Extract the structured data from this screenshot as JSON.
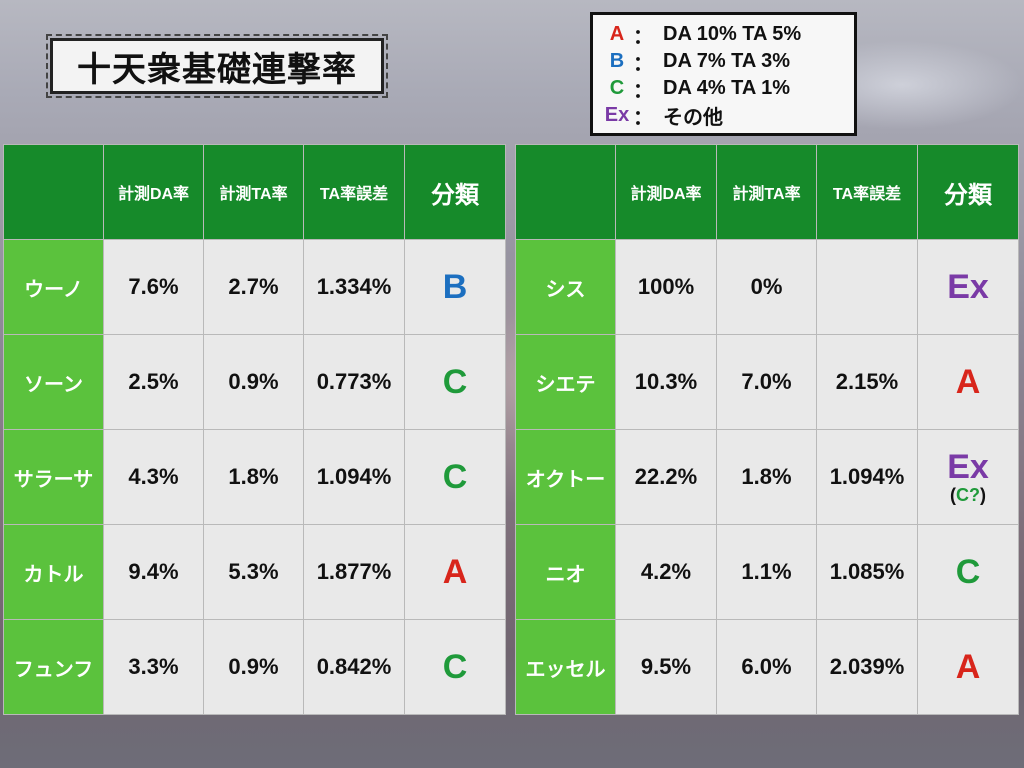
{
  "title": "十天衆基礎連撃率",
  "legend": [
    {
      "key": "A",
      "desc": "DA 10% TA 5%",
      "color": "#d8251b"
    },
    {
      "key": "B",
      "desc": "DA 7% TA 3%",
      "color": "#1c6fc0"
    },
    {
      "key": "C",
      "desc": "DA 4% TA 1%",
      "color": "#1f9a3a"
    },
    {
      "key": "Ex",
      "desc": "その他",
      "color": "#7a3aa6"
    }
  ],
  "legend_colon": "：",
  "headers": [
    "",
    "計測DA率",
    "計測TA率",
    "TA率誤差",
    "分類"
  ],
  "left_rows": [
    {
      "name": "ウーノ",
      "da": "7.6%",
      "ta": "2.7%",
      "err": "1.334%",
      "cls": "B"
    },
    {
      "name": "ソーン",
      "da": "2.5%",
      "ta": "0.9%",
      "err": "0.773%",
      "cls": "C"
    },
    {
      "name": "サラーサ",
      "da": "4.3%",
      "ta": "1.8%",
      "err": "1.094%",
      "cls": "C"
    },
    {
      "name": "カトル",
      "da": "9.4%",
      "ta": "5.3%",
      "err": "1.877%",
      "cls": "A"
    },
    {
      "name": "フュンフ",
      "da": "3.3%",
      "ta": "0.9%",
      "err": "0.842%",
      "cls": "C"
    }
  ],
  "right_rows": [
    {
      "name": "シス",
      "da": "100%",
      "ta": "0%",
      "err": "",
      "cls": "Ex"
    },
    {
      "name": "シエテ",
      "da": "10.3%",
      "ta": "7.0%",
      "err": "2.15%",
      "cls": "A"
    },
    {
      "name": "オクトー",
      "da": "22.2%",
      "ta": "1.8%",
      "err": "1.094%",
      "cls": "Ex",
      "note_open": "(",
      "note": "C?",
      "note_close": ")"
    },
    {
      "name": "ニオ",
      "da": "4.2%",
      "ta": "1.1%",
      "err": "1.085%",
      "cls": "C"
    },
    {
      "name": "エッセル",
      "da": "9.5%",
      "ta": "6.0%",
      "err": "2.039%",
      "cls": "A"
    }
  ]
}
